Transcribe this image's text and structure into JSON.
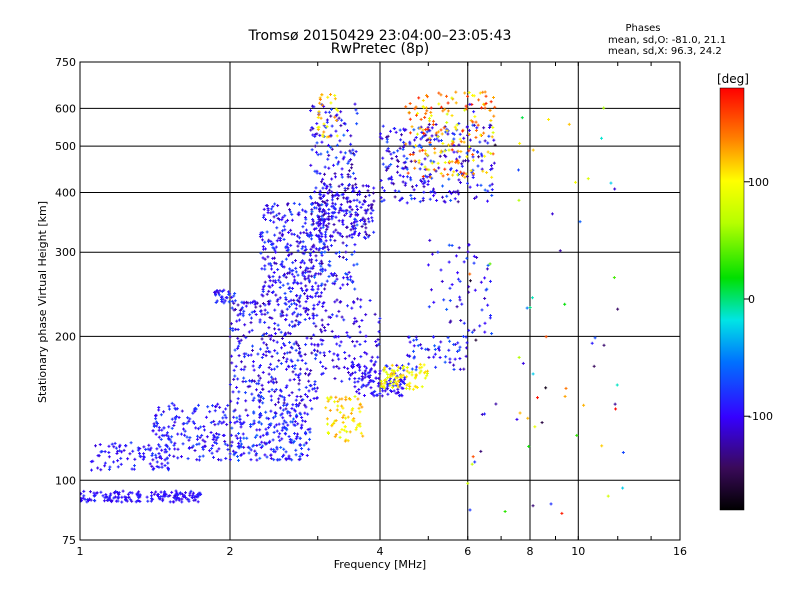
{
  "chart_data": {
    "type": "scatter",
    "title": "Tromsø 20150429 23:04:00–23:05:43",
    "subtitle": "RwPretec (8p)",
    "xlabel": "Frequency [MHz]",
    "ylabel": "Stationary phase Virtual Height [km]",
    "x_scale": "log",
    "y_scale": "log",
    "xlim": [
      1,
      16
    ],
    "ylim": [
      75,
      750
    ],
    "x_ticks": [
      1,
      2,
      4,
      6,
      8,
      10,
      16
    ],
    "x_tick_labels": [
      "1",
      "2",
      "4",
      "6",
      "8",
      "10",
      "16"
    ],
    "x_grid": [
      2,
      4,
      6,
      8,
      10
    ],
    "y_ticks": [
      75,
      100,
      200,
      300,
      400,
      500,
      600,
      750
    ],
    "y_tick_labels": [
      "75",
      "100",
      "200",
      "300",
      "400",
      "500",
      "600",
      "750"
    ],
    "y_grid": [
      100,
      200,
      300,
      400,
      500,
      600
    ],
    "grid": true,
    "legend": {
      "title": "Phases",
      "line1": "mean, sd,O:  -81.0,  21.1",
      "line2": "mean, sd,X:   96.3,  24.2"
    },
    "colorbar": {
      "unit": "[deg]",
      "range": [
        -180,
        180
      ],
      "ticks": [
        100,
        0,
        -100
      ],
      "tick_labels": [
        "100",
        "0",
        "-100"
      ]
    },
    "clusters": [
      {
        "f": [
          1.0,
          1.75
        ],
        "h": [
          90,
          95
        ],
        "phase": [
          -110,
          -80
        ],
        "n": 170
      },
      {
        "f": [
          1.05,
          1.55
        ],
        "h": [
          105,
          120
        ],
        "phase": [
          -110,
          -75
        ],
        "n": 90
      },
      {
        "f": [
          1.4,
          2.0
        ],
        "h": [
          110,
          145
        ],
        "phase": [
          -110,
          -70
        ],
        "n": 170
      },
      {
        "f": [
          1.85,
          2.05
        ],
        "h": [
          235,
          250
        ],
        "phase": [
          -110,
          -70
        ],
        "n": 30
      },
      {
        "f": [
          2.0,
          2.9
        ],
        "h": [
          110,
          140
        ],
        "phase": [
          -110,
          -60
        ],
        "n": 220
      },
      {
        "f": [
          2.0,
          3.0
        ],
        "h": [
          140,
          240
        ],
        "phase": [
          -125,
          -70
        ],
        "n": 380
      },
      {
        "f": [
          2.3,
          3.1
        ],
        "h": [
          240,
          380
        ],
        "phase": [
          -120,
          -70
        ],
        "n": 300
      },
      {
        "f": [
          2.9,
          3.6
        ],
        "h": [
          250,
          620
        ],
        "phase": [
          -130,
          -60
        ],
        "n": 240
      },
      {
        "f": [
          3.0,
          3.9
        ],
        "h": [
          320,
          420
        ],
        "phase": [
          -130,
          -80
        ],
        "n": 180
      },
      {
        "f": [
          3.0,
          4.0
        ],
        "h": [
          160,
          240
        ],
        "phase": [
          -120,
          -80
        ],
        "n": 120
      },
      {
        "f": [
          3.1,
          3.7
        ],
        "h": [
          120,
          150
        ],
        "phase": [
          80,
          130
        ],
        "n": 70
      },
      {
        "f": [
          3.0,
          3.3
        ],
        "h": [
          520,
          650
        ],
        "phase": [
          90,
          140
        ],
        "n": 30
      },
      {
        "f": [
          3.5,
          4.5
        ],
        "h": [
          150,
          175
        ],
        "phase": [
          -110,
          -80
        ],
        "n": 120
      },
      {
        "f": [
          4.0,
          5.0
        ],
        "h": [
          155,
          175
        ],
        "phase": [
          80,
          120
        ],
        "n": 80
      },
      {
        "f": [
          4.0,
          6.8
        ],
        "h": [
          380,
          560
        ],
        "phase": [
          -130,
          -60
        ],
        "n": 260
      },
      {
        "f": [
          4.5,
          6.8
        ],
        "h": [
          430,
          650
        ],
        "phase": [
          80,
          170
        ],
        "n": 180
      },
      {
        "f": [
          5.0,
          6.7
        ],
        "h": [
          200,
          320
        ],
        "phase": [
          -130,
          -60
        ],
        "n": 60
      },
      {
        "f": [
          4.5,
          6.0
        ],
        "h": [
          170,
          200
        ],
        "phase": [
          -120,
          -60
        ],
        "n": 60
      },
      {
        "f": [
          6.0,
          12.5
        ],
        "h": [
          85,
          640
        ],
        "phase": [
          -180,
          180
        ],
        "n": 70
      }
    ]
  }
}
